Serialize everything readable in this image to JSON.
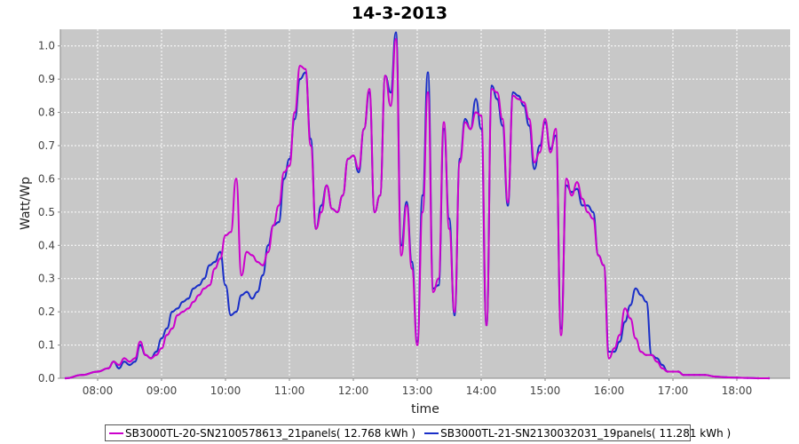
{
  "chart_data": {
    "type": "line",
    "title": "14-3-2013",
    "xlabel": "time",
    "ylabel": "Watt/Wp",
    "x_ticks": [
      "08:00",
      "09:00",
      "10:00",
      "11:00",
      "12:00",
      "13:00",
      "14:00",
      "15:00",
      "16:00",
      "17:00",
      "18:00"
    ],
    "y_ticks": [
      "0.0",
      "0.1",
      "0.2",
      "0.3",
      "0.4",
      "0.5",
      "0.6",
      "0.7",
      "0.8",
      "0.9",
      "1.0"
    ],
    "xlim": [
      "07:25",
      "18:50"
    ],
    "ylim": [
      0,
      1.05
    ],
    "grid": true,
    "legend_position": "bottom",
    "series": [
      {
        "name": "SB3000TL-20-SN2100578613_21panels( 12.768 kWh )",
        "color": "#cc00cc",
        "x": [
          "07:30",
          "07:45",
          "08:00",
          "08:10",
          "08:15",
          "08:20",
          "08:25",
          "08:30",
          "08:35",
          "08:40",
          "08:45",
          "08:50",
          "08:55",
          "09:00",
          "09:05",
          "09:10",
          "09:15",
          "09:20",
          "09:25",
          "09:30",
          "09:35",
          "09:40",
          "09:45",
          "09:50",
          "09:55",
          "10:00",
          "10:05",
          "10:10",
          "10:15",
          "10:20",
          "10:25",
          "10:30",
          "10:35",
          "10:40",
          "10:45",
          "10:50",
          "10:55",
          "11:00",
          "11:05",
          "11:10",
          "11:15",
          "11:20",
          "11:25",
          "11:30",
          "11:35",
          "11:40",
          "11:45",
          "11:50",
          "11:55",
          "12:00",
          "12:05",
          "12:10",
          "12:15",
          "12:20",
          "12:25",
          "12:30",
          "12:35",
          "12:40",
          "12:45",
          "12:50",
          "12:55",
          "13:00",
          "13:05",
          "13:10",
          "13:15",
          "13:20",
          "13:25",
          "13:30",
          "13:35",
          "13:40",
          "13:45",
          "13:50",
          "13:55",
          "14:00",
          "14:05",
          "14:10",
          "14:15",
          "14:20",
          "14:25",
          "14:30",
          "14:35",
          "14:40",
          "14:45",
          "14:50",
          "14:55",
          "15:00",
          "15:05",
          "15:10",
          "15:15",
          "15:20",
          "15:25",
          "15:30",
          "15:35",
          "15:40",
          "15:45",
          "15:50",
          "15:55",
          "16:00",
          "16:05",
          "16:10",
          "16:15",
          "16:20",
          "16:25",
          "16:30",
          "16:35",
          "16:40",
          "16:45",
          "16:50",
          "16:55",
          "17:00",
          "17:05",
          "17:10",
          "17:15",
          "17:20",
          "17:25",
          "17:30",
          "17:40",
          "17:50",
          "18:00",
          "18:10",
          "18:20",
          "18:30"
        ],
        "values": [
          0.0,
          0.01,
          0.02,
          0.03,
          0.05,
          0.04,
          0.06,
          0.05,
          0.06,
          0.11,
          0.07,
          0.06,
          0.07,
          0.09,
          0.13,
          0.15,
          0.19,
          0.2,
          0.21,
          0.23,
          0.25,
          0.27,
          0.28,
          0.33,
          0.36,
          0.43,
          0.44,
          0.6,
          0.31,
          0.38,
          0.37,
          0.35,
          0.34,
          0.38,
          0.46,
          0.52,
          0.62,
          0.64,
          0.8,
          0.94,
          0.93,
          0.7,
          0.45,
          0.5,
          0.58,
          0.51,
          0.5,
          0.55,
          0.66,
          0.67,
          0.63,
          0.75,
          0.87,
          0.5,
          0.55,
          0.91,
          0.82,
          1.02,
          0.37,
          0.52,
          0.33,
          0.1,
          0.5,
          0.86,
          0.26,
          0.3,
          0.77,
          0.45,
          0.2,
          0.65,
          0.77,
          0.75,
          0.8,
          0.79,
          0.16,
          0.87,
          0.86,
          0.78,
          0.53,
          0.85,
          0.84,
          0.83,
          0.78,
          0.65,
          0.68,
          0.78,
          0.68,
          0.75,
          0.13,
          0.6,
          0.55,
          0.59,
          0.54,
          0.5,
          0.48,
          0.37,
          0.34,
          0.06,
          0.09,
          0.13,
          0.21,
          0.18,
          0.12,
          0.08,
          0.07,
          0.07,
          0.05,
          0.03,
          0.02,
          0.02,
          0.02,
          0.01,
          0.01,
          0.01,
          0.01,
          0.01,
          0.005,
          0.003,
          0.002,
          0.001,
          0.0,
          0.0
        ],
        "note_unused": ""
      },
      {
        "name": "SB3000TL-21-SN2130032031_19panels( 11.281 kWh )",
        "color": "#1a2fc8",
        "x": [
          "07:30",
          "07:45",
          "08:00",
          "08:10",
          "08:15",
          "08:20",
          "08:25",
          "08:30",
          "08:35",
          "08:40",
          "08:45",
          "08:50",
          "08:55",
          "09:00",
          "09:05",
          "09:10",
          "09:15",
          "09:20",
          "09:25",
          "09:30",
          "09:35",
          "09:40",
          "09:45",
          "09:50",
          "09:55",
          "10:00",
          "10:05",
          "10:10",
          "10:15",
          "10:20",
          "10:25",
          "10:30",
          "10:35",
          "10:40",
          "10:45",
          "10:50",
          "10:55",
          "11:00",
          "11:05",
          "11:10",
          "11:15",
          "11:20",
          "11:25",
          "11:30",
          "11:35",
          "11:40",
          "11:45",
          "11:50",
          "11:55",
          "12:00",
          "12:05",
          "12:10",
          "12:15",
          "12:20",
          "12:25",
          "12:30",
          "12:35",
          "12:40",
          "12:45",
          "12:50",
          "12:55",
          "13:00",
          "13:05",
          "13:10",
          "13:15",
          "13:20",
          "13:25",
          "13:30",
          "13:35",
          "13:40",
          "13:45",
          "13:50",
          "13:55",
          "14:00",
          "14:05",
          "14:10",
          "14:15",
          "14:20",
          "14:25",
          "14:30",
          "14:35",
          "14:40",
          "14:45",
          "14:50",
          "14:55",
          "15:00",
          "15:05",
          "15:10",
          "15:15",
          "15:20",
          "15:25",
          "15:30",
          "15:35",
          "15:40",
          "15:45",
          "15:50",
          "15:55",
          "16:00",
          "16:05",
          "16:10",
          "16:15",
          "16:20",
          "16:25",
          "16:30",
          "16:35",
          "16:40",
          "16:45",
          "16:50",
          "16:55",
          "17:00",
          "17:05",
          "17:10",
          "17:15",
          "17:20",
          "17:25",
          "17:30",
          "17:40",
          "17:50",
          "18:00",
          "18:10",
          "18:20",
          "18:30"
        ],
        "values": [
          0.0,
          0.01,
          0.02,
          0.03,
          0.05,
          0.03,
          0.05,
          0.04,
          0.05,
          0.1,
          0.07,
          0.06,
          0.08,
          0.12,
          0.15,
          0.2,
          0.21,
          0.23,
          0.24,
          0.27,
          0.28,
          0.3,
          0.34,
          0.35,
          0.38,
          0.28,
          0.19,
          0.2,
          0.25,
          0.26,
          0.24,
          0.26,
          0.31,
          0.4,
          0.46,
          0.47,
          0.6,
          0.66,
          0.78,
          0.9,
          0.92,
          0.72,
          0.45,
          0.52,
          0.58,
          0.51,
          0.5,
          0.55,
          0.66,
          0.67,
          0.62,
          0.75,
          0.86,
          0.5,
          0.55,
          0.91,
          0.86,
          1.04,
          0.4,
          0.53,
          0.35,
          0.11,
          0.55,
          0.92,
          0.27,
          0.28,
          0.75,
          0.48,
          0.19,
          0.66,
          0.78,
          0.75,
          0.84,
          0.75,
          0.16,
          0.88,
          0.84,
          0.76,
          0.52,
          0.86,
          0.85,
          0.82,
          0.76,
          0.63,
          0.7,
          0.77,
          0.69,
          0.73,
          0.15,
          0.58,
          0.56,
          0.57,
          0.52,
          0.52,
          0.5,
          0.37,
          0.34,
          0.08,
          0.08,
          0.11,
          0.17,
          0.22,
          0.27,
          0.25,
          0.23,
          0.07,
          0.06,
          0.04,
          0.02,
          0.02,
          0.02,
          0.01,
          0.01,
          0.01,
          0.01,
          0.01,
          0.005,
          0.003,
          0.002,
          0.001,
          0.0,
          0.0
        ]
      }
    ]
  }
}
